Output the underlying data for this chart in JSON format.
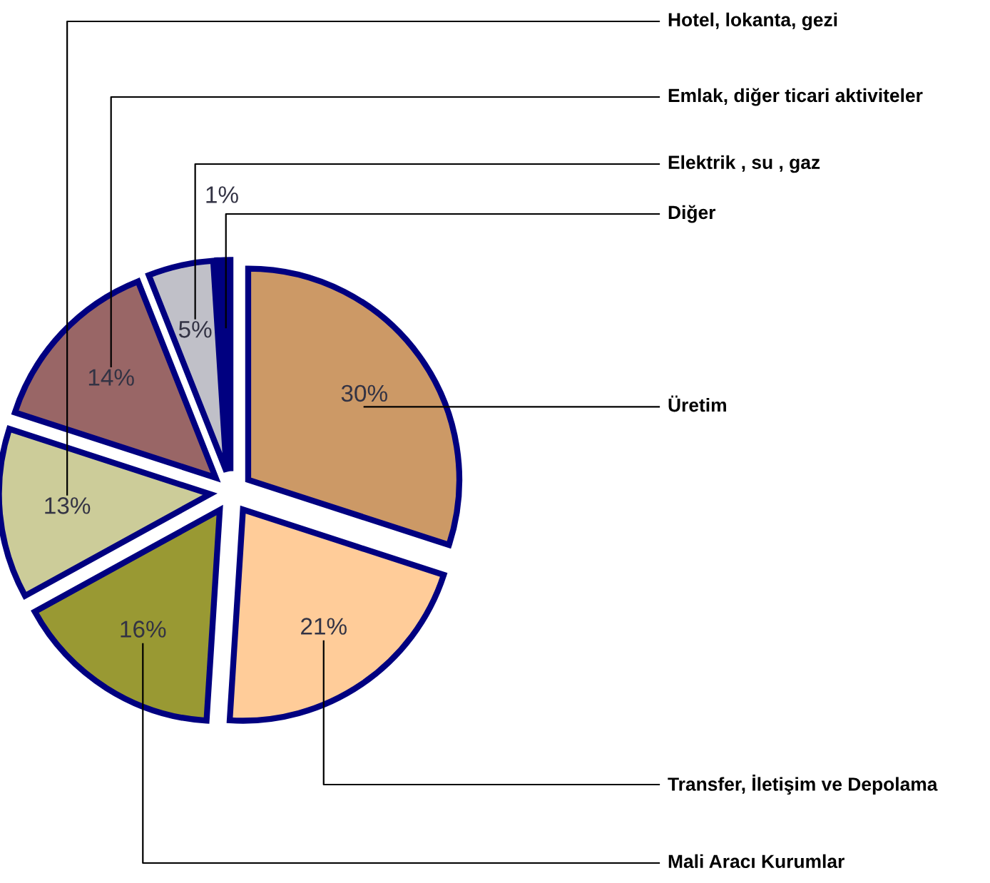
{
  "chart_data": {
    "type": "pie",
    "categories": [
      "Üretim",
      "Transfer, İletişim ve Depolama",
      "Mali Aracı Kurumlar",
      "Hotel, lokanta, gezi",
      "Emlak, diğer ticari aktiviteler",
      "Elektrik , su , gaz",
      "Diğer"
    ],
    "values": [
      30,
      21,
      16,
      13,
      14,
      5,
      1
    ],
    "value_labels": [
      "30%",
      "21%",
      "16%",
      "13%",
      "14%",
      "5%",
      "1%"
    ],
    "colors": [
      "#cc9966",
      "#ffcc99",
      "#999933",
      "#cccc99",
      "#996666",
      "#c0c0c8",
      "#000080"
    ],
    "legend": false
  }
}
